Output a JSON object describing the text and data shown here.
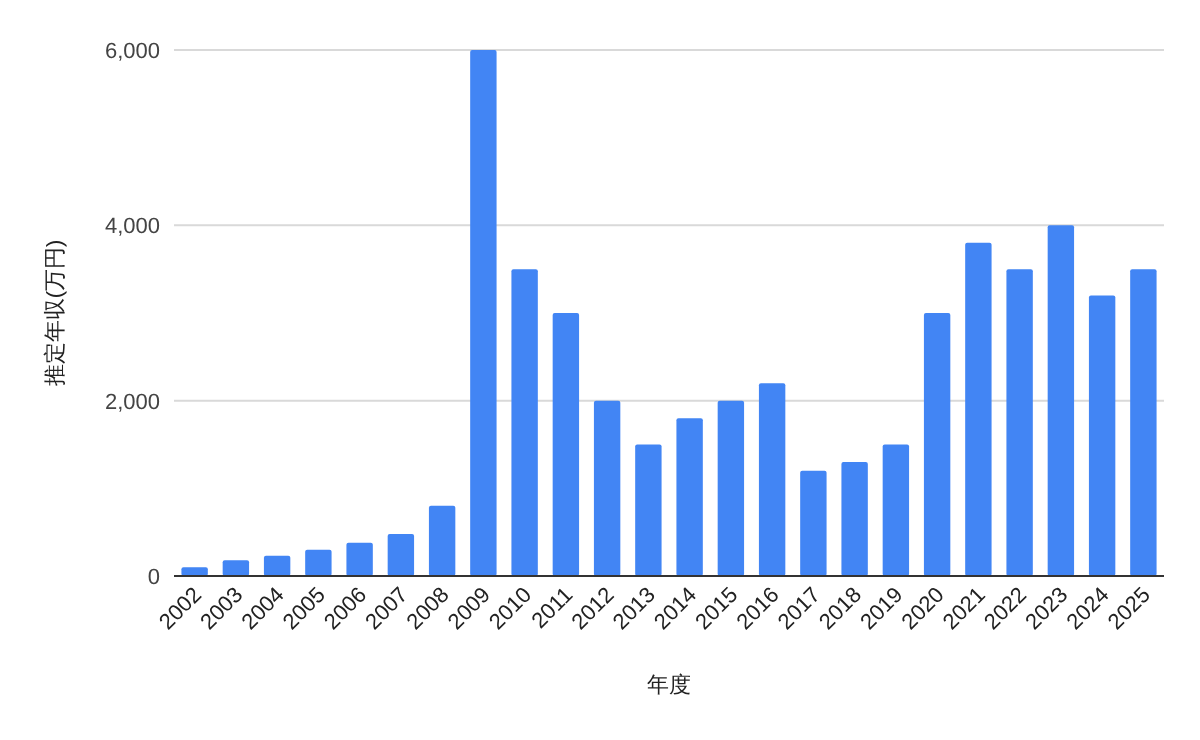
{
  "chart_data": {
    "type": "bar",
    "xlabel": "年度",
    "ylabel": "推定年収(万円)",
    "categories": [
      "2002",
      "2003",
      "2004",
      "2005",
      "2006",
      "2007",
      "2008",
      "2009",
      "2010",
      "2011",
      "2012",
      "2013",
      "2014",
      "2015",
      "2016",
      "2017",
      "2018",
      "2019",
      "2020",
      "2021",
      "2022",
      "2023",
      "2024",
      "2025"
    ],
    "values": [
      100,
      180,
      230,
      300,
      380,
      480,
      800,
      6000,
      3500,
      3000,
      2000,
      1500,
      1800,
      2000,
      2200,
      1200,
      1300,
      1500,
      3000,
      3800,
      3500,
      4000,
      3200,
      3500
    ],
    "color": "#4285f4",
    "ylim": [
      0,
      6000
    ],
    "yticks": [
      {
        "value": 0,
        "label": "0"
      },
      {
        "value": 2000,
        "label": "2,000"
      },
      {
        "value": 4000,
        "label": "4,000"
      },
      {
        "value": 6000,
        "label": "6,000"
      }
    ],
    "grid": "y"
  }
}
